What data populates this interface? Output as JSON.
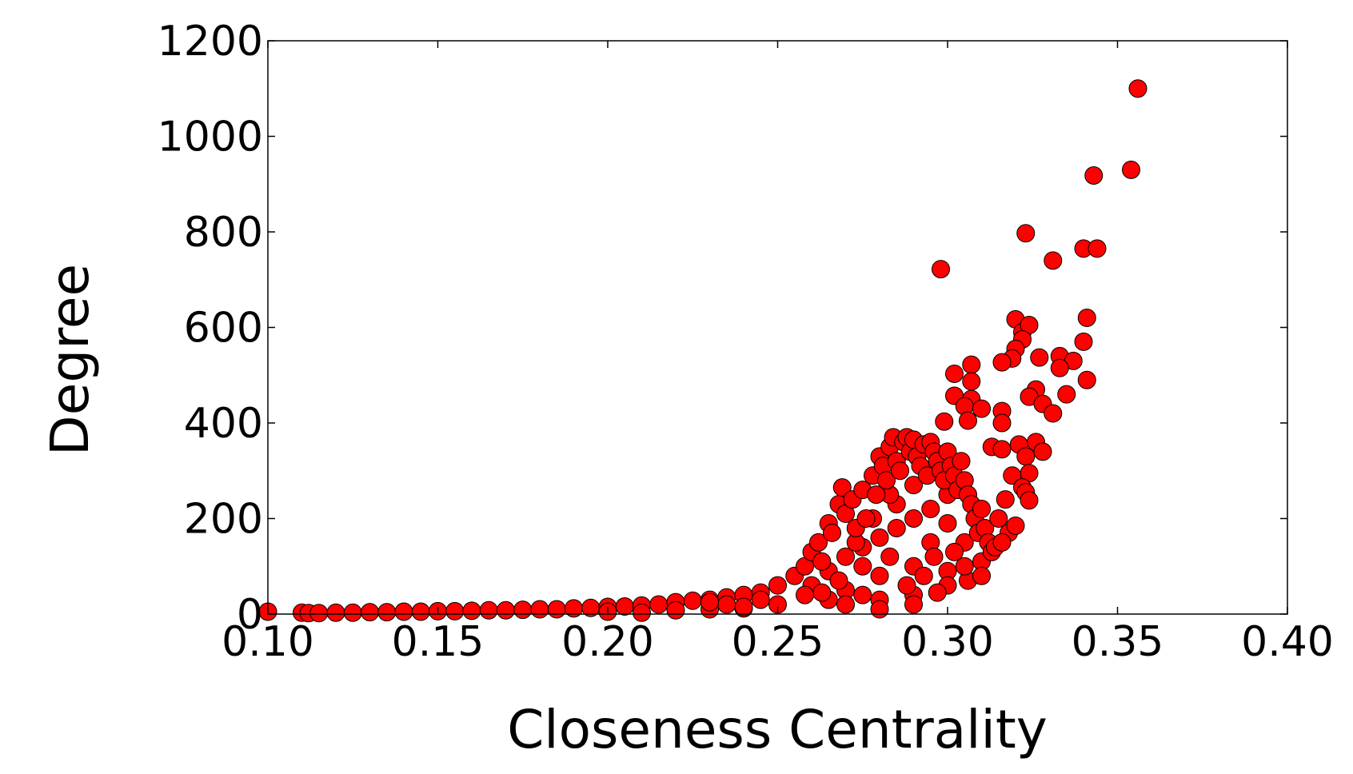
{
  "chart_data": {
    "type": "scatter",
    "xlabel": "Closeness Centrality",
    "ylabel": "Degree",
    "color": "#ff0000",
    "xlim": [
      0.1,
      0.4
    ],
    "ylim": [
      0,
      1200
    ],
    "xticks": [
      {
        "value": 0.1,
        "label": "0.10"
      },
      0.15,
      {
        "value": 0.2,
        "label": "0.20"
      },
      0.25,
      {
        "value": 0.3,
        "label": "0.30"
      },
      0.35,
      {
        "value": 0.4,
        "label": "0.40"
      }
    ],
    "yticks": [
      0,
      200,
      400,
      600,
      800,
      1000,
      1200
    ],
    "x": [
      0.1,
      0.11,
      0.112,
      0.115,
      0.12,
      0.125,
      0.13,
      0.135,
      0.14,
      0.145,
      0.15,
      0.155,
      0.16,
      0.165,
      0.17,
      0.175,
      0.18,
      0.185,
      0.19,
      0.195,
      0.2,
      0.205,
      0.21,
      0.215,
      0.22,
      0.225,
      0.23,
      0.235,
      0.24,
      0.245,
      0.25,
      0.2,
      0.21,
      0.22,
      0.23,
      0.24,
      0.26,
      0.265,
      0.27,
      0.275,
      0.28,
      0.285,
      0.29,
      0.295,
      0.3,
      0.305,
      0.31,
      0.27,
      0.28,
      0.29,
      0.3,
      0.306,
      0.28,
      0.29,
      0.3,
      0.285,
      0.275,
      0.29,
      0.295,
      0.283,
      0.278,
      0.3,
      0.296,
      0.265,
      0.27,
      0.275,
      0.28,
      0.29,
      0.297,
      0.305,
      0.302,
      0.31,
      0.288,
      0.283,
      0.293,
      0.268,
      0.273,
      0.263,
      0.258,
      0.25,
      0.245,
      0.24,
      0.235,
      0.23,
      0.255,
      0.258,
      0.26,
      0.262,
      0.263,
      0.265,
      0.266,
      0.268,
      0.269,
      0.27,
      0.272,
      0.273,
      0.275,
      0.276,
      0.278,
      0.279,
      0.28,
      0.281,
      0.282,
      0.283,
      0.284,
      0.285,
      0.286,
      0.287,
      0.288,
      0.289,
      0.29,
      0.291,
      0.292,
      0.293,
      0.294,
      0.295,
      0.296,
      0.297,
      0.298,
      0.299,
      0.3,
      0.301,
      0.302,
      0.303,
      0.304,
      0.305,
      0.306,
      0.307,
      0.308,
      0.309,
      0.31,
      0.311,
      0.312,
      0.313,
      0.315,
      0.317,
      0.318,
      0.314,
      0.356,
      0.354,
      0.343,
      0.323,
      0.331,
      0.298,
      0.34,
      0.344,
      0.341,
      0.32,
      0.322,
      0.324,
      0.34,
      0.322,
      0.32,
      0.319,
      0.316,
      0.327,
      0.333,
      0.337,
      0.333,
      0.307,
      0.302,
      0.307,
      0.341,
      0.326,
      0.324,
      0.302,
      0.307,
      0.335,
      0.305,
      0.31,
      0.328,
      0.316,
      0.331,
      0.299,
      0.306,
      0.316,
      0.326,
      0.321,
      0.313,
      0.316,
      0.328,
      0.323,
      0.324,
      0.319,
      0.322,
      0.323,
      0.324,
      0.32,
      0.316
    ],
    "values": [
      5,
      3,
      2,
      2,
      3,
      3,
      4,
      4,
      5,
      5,
      6,
      6,
      7,
      8,
      8,
      9,
      10,
      10,
      12,
      13,
      15,
      16,
      18,
      20,
      25,
      28,
      30,
      35,
      40,
      45,
      60,
      5,
      3,
      8,
      10,
      12,
      60,
      90,
      120,
      140,
      160,
      180,
      200,
      220,
      190,
      150,
      110,
      50,
      80,
      100,
      90,
      70,
      30,
      40,
      60,
      230,
      100,
      270,
      150,
      250,
      200,
      250,
      120,
      30,
      20,
      40,
      10,
      20,
      45,
      100,
      130,
      80,
      60,
      120,
      80,
      70,
      150,
      45,
      40,
      20,
      30,
      15,
      20,
      25,
      80,
      100,
      130,
      150,
      110,
      190,
      170,
      230,
      265,
      210,
      240,
      180,
      260,
      200,
      290,
      250,
      330,
      310,
      280,
      350,
      370,
      320,
      300,
      360,
      370,
      340,
      365,
      330,
      310,
      355,
      290,
      360,
      340,
      320,
      300,
      280,
      340,
      310,
      290,
      260,
      320,
      280,
      250,
      230,
      200,
      170,
      220,
      180,
      150,
      130,
      200,
      240,
      170,
      140,
      1100,
      930,
      918,
      797,
      740,
      722,
      765,
      765,
      620,
      617,
      590,
      605,
      570,
      575,
      555,
      535,
      527,
      537,
      540,
      530,
      515,
      522,
      503,
      487,
      490,
      470,
      455,
      457,
      450,
      460,
      435,
      430,
      440,
      425,
      420,
      403,
      405,
      400,
      360,
      355,
      350,
      345,
      340,
      330,
      295,
      290,
      265,
      255,
      238,
      185,
      150
    ]
  }
}
